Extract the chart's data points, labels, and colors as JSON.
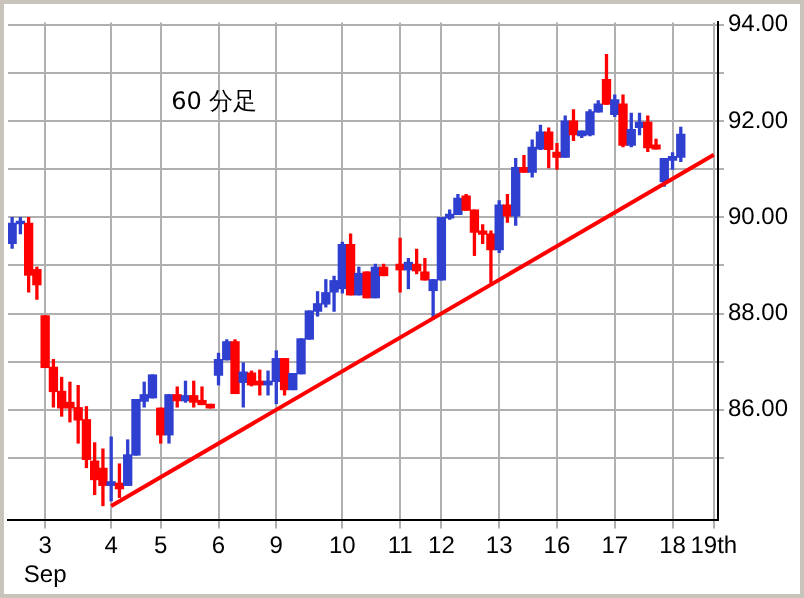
{
  "chart_data": {
    "type": "candlestick",
    "title": "60 分足",
    "categories": [
      null,
      null,
      null,
      null,
      "3\nSep",
      null,
      null,
      null,
      null,
      null,
      null,
      null,
      "4",
      null,
      null,
      null,
      null,
      null,
      "5",
      null,
      null,
      null,
      null,
      null,
      null,
      "6",
      null,
      null,
      null,
      null,
      null,
      null,
      "9",
      null,
      null,
      null,
      null,
      null,
      null,
      null,
      "10",
      null,
      null,
      null,
      null,
      null,
      null,
      "11",
      null,
      null,
      null,
      null,
      "12",
      null,
      null,
      null,
      null,
      null,
      null,
      "13",
      null,
      null,
      null,
      null,
      null,
      null,
      "16",
      null,
      null,
      null,
      null,
      null,
      null,
      "17",
      null,
      null,
      null,
      null,
      null,
      null,
      "18",
      null,
      null,
      null,
      null,
      "19th"
    ],
    "ylim": [
      83.7,
      94.05
    ],
    "yticks": [
      {
        "value": 85,
        "label": null
      },
      {
        "value": 86,
        "label": "86.00"
      },
      {
        "value": 87,
        "label": null
      },
      {
        "value": 88,
        "label": "88.00"
      },
      {
        "value": 89,
        "label": null
      },
      {
        "value": 90,
        "label": "90.00"
      },
      {
        "value": 91,
        "label": null
      },
      {
        "value": 92,
        "label": "92.00"
      },
      {
        "value": 93,
        "label": null
      },
      {
        "value": 94,
        "label": "94.00"
      }
    ],
    "grid": true,
    "series": [
      {
        "ohlc": [
          [
            89.46,
            89.99,
            89.36,
            89.87
          ],
          [
            89.87,
            89.99,
            89.66,
            89.9
          ],
          [
            89.87,
            89.99,
            88.45,
            88.8
          ],
          [
            88.91,
            88.96,
            88.3,
            88.6
          ],
          [
            87.95,
            87.95,
            86.88,
            86.88
          ],
          [
            86.88,
            87.04,
            86.06,
            86.38
          ],
          [
            86.38,
            86.67,
            85.87,
            86.04
          ],
          [
            86.15,
            86.57,
            85.75,
            86.04
          ],
          [
            86.04,
            86.5,
            85.31,
            85.79
          ],
          [
            85.79,
            86.06,
            84.8,
            84.97
          ],
          [
            84.93,
            85.31,
            84.24,
            84.55
          ],
          [
            84.78,
            85.18,
            84.01,
            84.43
          ],
          [
            84.43,
            85.43,
            84.11,
            84.5
          ],
          [
            84.47,
            84.87,
            84.18,
            84.36
          ],
          [
            84.43,
            85.37,
            84.43,
            85.06
          ],
          [
            85.06,
            86.21,
            85.06,
            86.21
          ],
          [
            86.18,
            86.57,
            86.06,
            86.31
          ],
          [
            86.25,
            86.72,
            86.25,
            86.72
          ],
          [
            86.03,
            86.03,
            85.31,
            85.48
          ],
          [
            85.48,
            86.31,
            85.31,
            86.31
          ],
          [
            86.31,
            86.47,
            86.06,
            86.19
          ],
          [
            86.19,
            86.59,
            86.16,
            86.29
          ],
          [
            86.29,
            86.59,
            86.06,
            86.16
          ],
          [
            86.19,
            86.47,
            86.11,
            86.11
          ],
          [
            86.11,
            86.11,
            86.04,
            86.04
          ],
          [
            86.72,
            87.17,
            86.52,
            87.04
          ],
          [
            87.04,
            87.45,
            87.04,
            87.41
          ],
          [
            87.41,
            87.45,
            86.34,
            86.34
          ],
          [
            86.57,
            86.97,
            86.06,
            86.78
          ],
          [
            86.76,
            86.8,
            86.5,
            86.52
          ],
          [
            86.59,
            86.82,
            86.31,
            86.52
          ],
          [
            86.52,
            86.8,
            86.31,
            86.59
          ],
          [
            86.59,
            87.22,
            86.13,
            87.06
          ],
          [
            87.06,
            87.06,
            86.31,
            86.42
          ],
          [
            86.42,
            86.75,
            86.42,
            86.75
          ],
          [
            86.75,
            87.47,
            86.75,
            87.47
          ],
          [
            87.47,
            88.05,
            87.47,
            88.05
          ],
          [
            88.05,
            88.45,
            87.95,
            88.2
          ],
          [
            88.2,
            88.7,
            88.14,
            88.43
          ],
          [
            88.45,
            88.77,
            88.05,
            88.68
          ],
          [
            88.52,
            89.48,
            88.43,
            89.43
          ],
          [
            89.43,
            89.65,
            88.39,
            88.39
          ],
          [
            88.39,
            88.96,
            88.39,
            88.83
          ],
          [
            88.86,
            88.86,
            88.33,
            88.33
          ],
          [
            88.33,
            89.02,
            88.33,
            88.96
          ],
          [
            88.96,
            89.02,
            88.79,
            88.79
          ],
          null,
          [
            89.02,
            89.56,
            88.45,
            88.91
          ],
          [
            88.91,
            89.14,
            88.52,
            89.06
          ],
          [
            89.02,
            89.33,
            88.83,
            88.89
          ],
          [
            88.86,
            89.14,
            88.7,
            88.7
          ],
          [
            88.48,
            88.7,
            87.89,
            88.7
          ],
          [
            88.7,
            89.99,
            88.7,
            89.99
          ],
          [
            89.99,
            90.15,
            89.96,
            90.06
          ],
          [
            90.06,
            90.47,
            90.06,
            90.39
          ],
          [
            90.44,
            90.47,
            90.15,
            90.15
          ],
          [
            90.15,
            90.15,
            89.21,
            89.69
          ],
          [
            89.71,
            89.84,
            89.46,
            89.65
          ],
          [
            89.65,
            89.71,
            88.64,
            89.33
          ],
          [
            89.33,
            90.34,
            89.27,
            90.25
          ],
          [
            90.25,
            90.47,
            89.9,
            90.03
          ],
          [
            90.03,
            91.22,
            89.84,
            91.03
          ],
          [
            91.03,
            91.28,
            90.94,
            90.94
          ],
          [
            90.94,
            91.6,
            90.84,
            91.45
          ],
          [
            91.42,
            91.91,
            91.41,
            91.77
          ],
          [
            91.77,
            91.85,
            91.03,
            91.41
          ],
          [
            91.35,
            91.53,
            91.0,
            91.25
          ],
          [
            91.25,
            92.1,
            91.25,
            92.0
          ],
          [
            92.0,
            92.23,
            91.6,
            91.72
          ],
          [
            91.7,
            91.79,
            91.66,
            91.79
          ],
          [
            91.72,
            92.23,
            91.7,
            92.19
          ],
          [
            92.19,
            92.42,
            92.19,
            92.35
          ],
          [
            92.86,
            93.38,
            92.35,
            92.35
          ],
          [
            92.14,
            92.54,
            92.1,
            92.44
          ],
          [
            92.35,
            92.54,
            91.47,
            91.5
          ],
          [
            91.5,
            92.16,
            91.47,
            91.82
          ],
          [
            91.87,
            92.16,
            91.72,
            91.97
          ],
          [
            91.97,
            92.1,
            91.37,
            91.45
          ],
          [
            91.5,
            91.62,
            91.42,
            91.42
          ],
          [
            90.74,
            91.22,
            90.65,
            91.22
          ],
          [
            91.19,
            91.34,
            91.0,
            91.26
          ],
          [
            91.25,
            91.87,
            91.16,
            91.72
          ],
          null,
          null,
          null,
          null
        ],
        "colors": [
          "#2f3fd0",
          "#2f3fd0",
          "#ff0000",
          "#ff0000",
          "#ff0000",
          "#ff0000",
          "#ff0000",
          "#ff0000",
          "#ff0000",
          "#ff0000",
          "#ff0000",
          "#ff0000",
          "#2f3fd0",
          "#ff0000",
          "#2f3fd0",
          "#2f3fd0",
          "#2f3fd0",
          "#2f3fd0",
          "#ff0000",
          "#2f3fd0",
          "#ff0000",
          "#2f3fd0",
          "#ff0000",
          "#ff0000",
          "#ff0000",
          "#2f3fd0",
          "#2f3fd0",
          "#ff0000",
          "#2f3fd0",
          "#ff0000",
          "#ff0000",
          "#2f3fd0",
          "#2f3fd0",
          "#ff0000",
          "#2f3fd0",
          "#2f3fd0",
          "#2f3fd0",
          "#2f3fd0",
          "#2f3fd0",
          "#2f3fd0",
          "#2f3fd0",
          "#ff0000",
          "#2f3fd0",
          "#ff0000",
          "#2f3fd0",
          "#ff0000",
          null,
          "#ff0000",
          "#2f3fd0",
          "#ff0000",
          "#ff0000",
          "#2f3fd0",
          "#2f3fd0",
          "#2f3fd0",
          "#2f3fd0",
          "#ff0000",
          "#ff0000",
          "#ff0000",
          "#ff0000",
          "#2f3fd0",
          "#ff0000",
          "#2f3fd0",
          "#ff0000",
          "#2f3fd0",
          "#2f3fd0",
          "#ff0000",
          "#ff0000",
          "#2f3fd0",
          "#ff0000",
          "#2f3fd0",
          "#2f3fd0",
          "#2f3fd0",
          "#ff0000",
          "#2f3fd0",
          "#ff0000",
          "#2f3fd0",
          "#2f3fd0",
          "#ff0000",
          "#ff0000",
          "#2f3fd0",
          "#2f3fd0",
          "#2f3fd0",
          null,
          null,
          null,
          null
        ]
      },
      {
        "type": "line",
        "color": "#ff0000",
        "values": [
          null,
          null,
          null,
          null,
          null,
          null,
          null,
          null,
          null,
          null,
          null,
          null,
          84.0,
          null,
          null,
          null,
          null,
          null,
          null,
          null,
          null,
          null,
          null,
          null,
          null,
          null,
          null,
          null,
          null,
          null,
          null,
          null,
          null,
          null,
          null,
          null,
          null,
          null,
          null,
          null,
          null,
          null,
          null,
          null,
          null,
          null,
          null,
          null,
          null,
          null,
          null,
          null,
          null,
          null,
          null,
          null,
          null,
          null,
          null,
          null,
          null,
          null,
          null,
          null,
          null,
          null,
          null,
          null,
          null,
          null,
          null,
          null,
          null,
          null,
          null,
          null,
          null,
          null,
          null,
          null,
          null,
          null,
          null,
          null,
          null,
          91.3
        ]
      }
    ]
  }
}
